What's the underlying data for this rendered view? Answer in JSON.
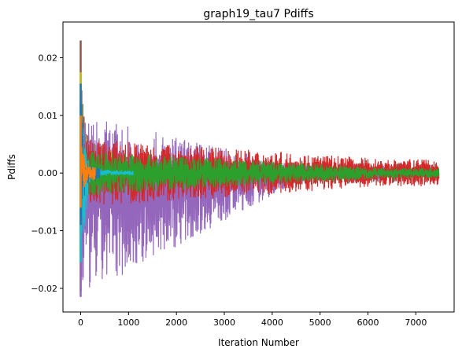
{
  "chart_data": {
    "type": "line",
    "title": "graph19_tau7 Pdiffs",
    "xlabel": "Iteration Number",
    "ylabel": "Pdiffs",
    "xlim": [
      -370,
      7800
    ],
    "ylim": [
      -0.0241,
      0.0262
    ],
    "xticks": [
      0,
      1000,
      2000,
      3000,
      4000,
      5000,
      6000,
      7000
    ],
    "xtick_labels": [
      "0",
      "1000",
      "2000",
      "3000",
      "4000",
      "5000",
      "6000",
      "7000"
    ],
    "yticks": [
      -0.02,
      -0.01,
      0.0,
      0.01,
      0.02
    ],
    "ytick_labels": [
      "−0.02",
      "−0.01",
      "0.00",
      "0.01",
      "0.02"
    ],
    "grid": false,
    "legend": "none",
    "series": [
      {
        "color": "#8c564b",
        "x_end": 7480,
        "peak": 0.023,
        "trough": -0.0205,
        "upper_env": [
          [
            0,
            0.023
          ],
          [
            100,
            0.0075
          ],
          [
            300,
            0.0055
          ],
          [
            600,
            0.0045
          ],
          [
            1000,
            0.0037
          ],
          [
            2000,
            0.0028
          ],
          [
            3000,
            0.0024
          ],
          [
            4000,
            0.0021
          ],
          [
            4500,
            0.002
          ],
          [
            7480,
            0.0017
          ]
        ],
        "lower_env": [
          [
            0,
            -0.0205
          ],
          [
            100,
            -0.0065
          ],
          [
            300,
            -0.0055
          ],
          [
            600,
            -0.0045
          ],
          [
            1000,
            -0.0037
          ],
          [
            2000,
            -0.0028
          ],
          [
            3000,
            -0.0024
          ],
          [
            4000,
            -0.0021
          ],
          [
            4500,
            -0.002
          ],
          [
            7480,
            -0.0017
          ]
        ]
      },
      {
        "color": "#e377c2",
        "x_end": 4550,
        "peak": 0.006,
        "trough": -0.005,
        "upper_env": [
          [
            0,
            0.006
          ],
          [
            1000,
            0.0033
          ],
          [
            2000,
            0.0026
          ],
          [
            3000,
            0.0022
          ],
          [
            4550,
            0.0019
          ]
        ],
        "lower_env": [
          [
            0,
            -0.005
          ],
          [
            1000,
            -0.0033
          ],
          [
            2000,
            -0.0026
          ],
          [
            3000,
            -0.0022
          ],
          [
            4550,
            -0.0019
          ]
        ]
      },
      {
        "color": "#bcbd22",
        "x_end": 1080,
        "peak": 0.0175,
        "trough": -0.015,
        "upper_env": [
          [
            0,
            0.0175
          ],
          [
            100,
            0.0065
          ],
          [
            400,
            0.0045
          ],
          [
            1080,
            0.0035
          ]
        ],
        "lower_env": [
          [
            0,
            -0.015
          ],
          [
            100,
            -0.0055
          ],
          [
            400,
            -0.0043
          ],
          [
            1080,
            -0.0032
          ]
        ]
      },
      {
        "color": "#7f7f7f",
        "x_end": 600,
        "peak": 0.013,
        "trough": -0.012,
        "upper_env": [
          [
            0,
            0.013
          ],
          [
            100,
            0.0055
          ],
          [
            300,
            0.004
          ],
          [
            600,
            0.0035
          ]
        ],
        "lower_env": [
          [
            0,
            -0.012
          ],
          [
            100,
            -0.0045
          ],
          [
            300,
            -0.0035
          ],
          [
            600,
            -0.003
          ]
        ]
      },
      {
        "color": "#9467bd",
        "x_end": 6330,
        "peak": 0.01,
        "trough": -0.0215,
        "upper_env": [
          [
            0,
            0.01
          ],
          [
            4550,
            0.0016
          ],
          [
            6330,
            0.0015
          ]
        ],
        "lower_env": [
          [
            0,
            -0.0215
          ],
          [
            4550,
            -0.0015
          ],
          [
            6330,
            -0.0014
          ]
        ]
      },
      {
        "color": "#d62728",
        "x_end": 7480,
        "peak": 0.006,
        "trough": -0.006,
        "upper_env": [
          [
            0,
            0.006
          ],
          [
            6300,
            0.0025
          ],
          [
            7480,
            0.0023
          ]
        ],
        "lower_env": [
          [
            0,
            -0.006
          ],
          [
            6300,
            -0.0023
          ],
          [
            7480,
            -0.0023
          ]
        ]
      },
      {
        "color": "#2ca02c",
        "x_end": 7480,
        "peak": 0.004,
        "trough": -0.004,
        "upper_env": [
          [
            0,
            0.004
          ],
          [
            6350,
            0.0009
          ],
          [
            7480,
            0.0009
          ]
        ],
        "lower_env": [
          [
            0,
            -0.004
          ],
          [
            6350,
            -0.0009
          ],
          [
            7480,
            -0.0009
          ]
        ]
      },
      {
        "color": "#17becf",
        "x_end": 1100,
        "peak": 0.0115,
        "trough": -0.0155,
        "upper_env": [
          [
            0,
            0.0115
          ],
          [
            200,
            0.0008
          ],
          [
            1100,
            0.0004
          ]
        ],
        "lower_env": [
          [
            0,
            -0.0155
          ],
          [
            200,
            -0.0006
          ],
          [
            1100,
            -0.0004
          ]
        ]
      },
      {
        "color": "#1f77b4",
        "x_end": 400,
        "peak": 0.0155,
        "trough": -0.009,
        "upper_env": [
          [
            0,
            0.0155
          ],
          [
            100,
            0.002
          ],
          [
            400,
            0.001
          ]
        ],
        "lower_env": [
          [
            0,
            -0.009
          ],
          [
            100,
            -0.002
          ],
          [
            400,
            -0.001
          ]
        ]
      },
      {
        "color": "#ff7f0e",
        "x_end": 300,
        "peak": 0.01,
        "trough": -0.006,
        "upper_env": [
          [
            0,
            0.01
          ],
          [
            100,
            0.002
          ],
          [
            300,
            0.001
          ]
        ],
        "lower_env": [
          [
            0,
            -0.006
          ],
          [
            100,
            -0.002
          ],
          [
            300,
            -0.001
          ]
        ]
      }
    ]
  }
}
